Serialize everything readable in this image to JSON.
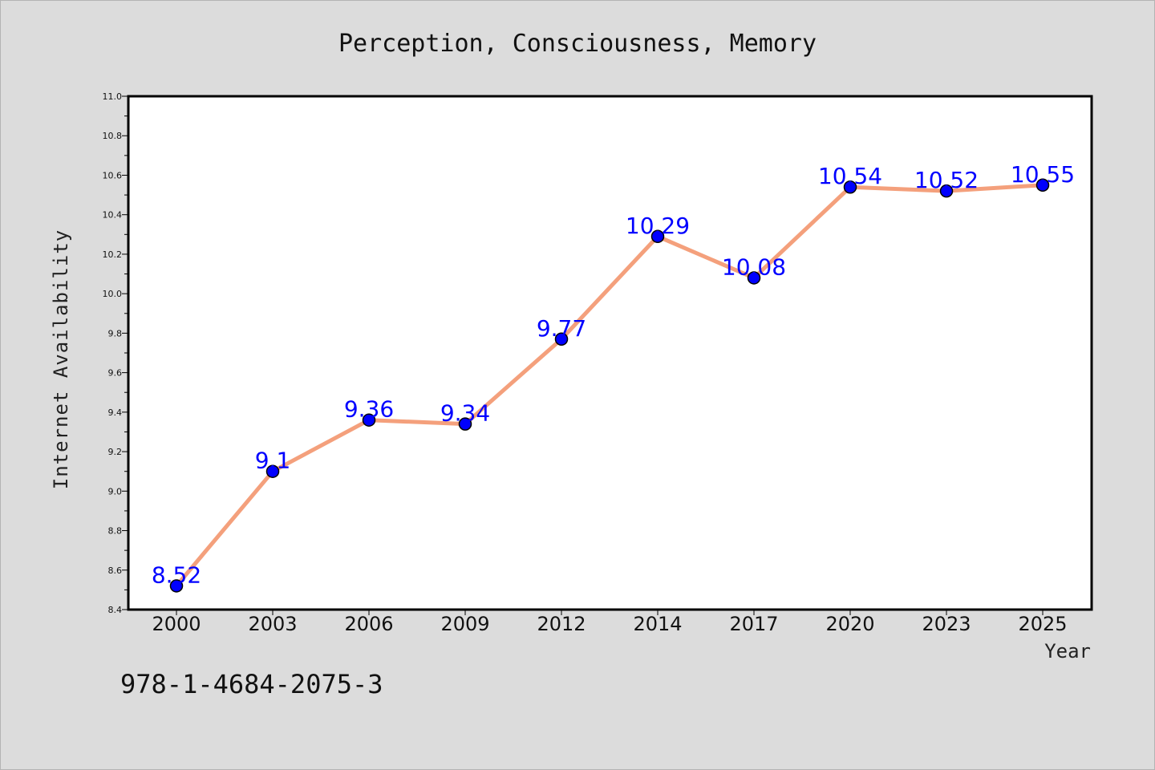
{
  "chart_data": {
    "type": "line",
    "title": "Perception, Consciousness, Memory",
    "xlabel": "Year",
    "ylabel": "Internet Availability",
    "categories": [
      "2000",
      "2003",
      "2006",
      "2009",
      "2012",
      "2014",
      "2017",
      "2020",
      "2023",
      "2025"
    ],
    "series": [
      {
        "values": [
          8.52,
          9.1,
          9.36,
          9.34,
          9.77,
          10.29,
          10.08,
          10.54,
          10.52,
          10.55
        ]
      }
    ],
    "data_labels": [
      "8.52",
      "9.1",
      "9.36",
      "9.34",
      "9.77",
      "10.29",
      "10.08",
      "10.54",
      "10.52",
      "10.55"
    ],
    "ylim": [
      8.4,
      11.0
    ],
    "yticks": [
      "8.4",
      "8.6",
      "8.8",
      "9.0",
      "9.2",
      "9.4",
      "9.6",
      "9.8",
      "10.0",
      "10.2",
      "10.4",
      "10.6",
      "10.8",
      "11.0"
    ],
    "grid": false,
    "legend": "none",
    "line_color": "#f4a07c",
    "marker_color": "#0000ff",
    "label_color": "#0000ff"
  },
  "footer": {
    "isbn": "978-1-4684-2075-3"
  }
}
